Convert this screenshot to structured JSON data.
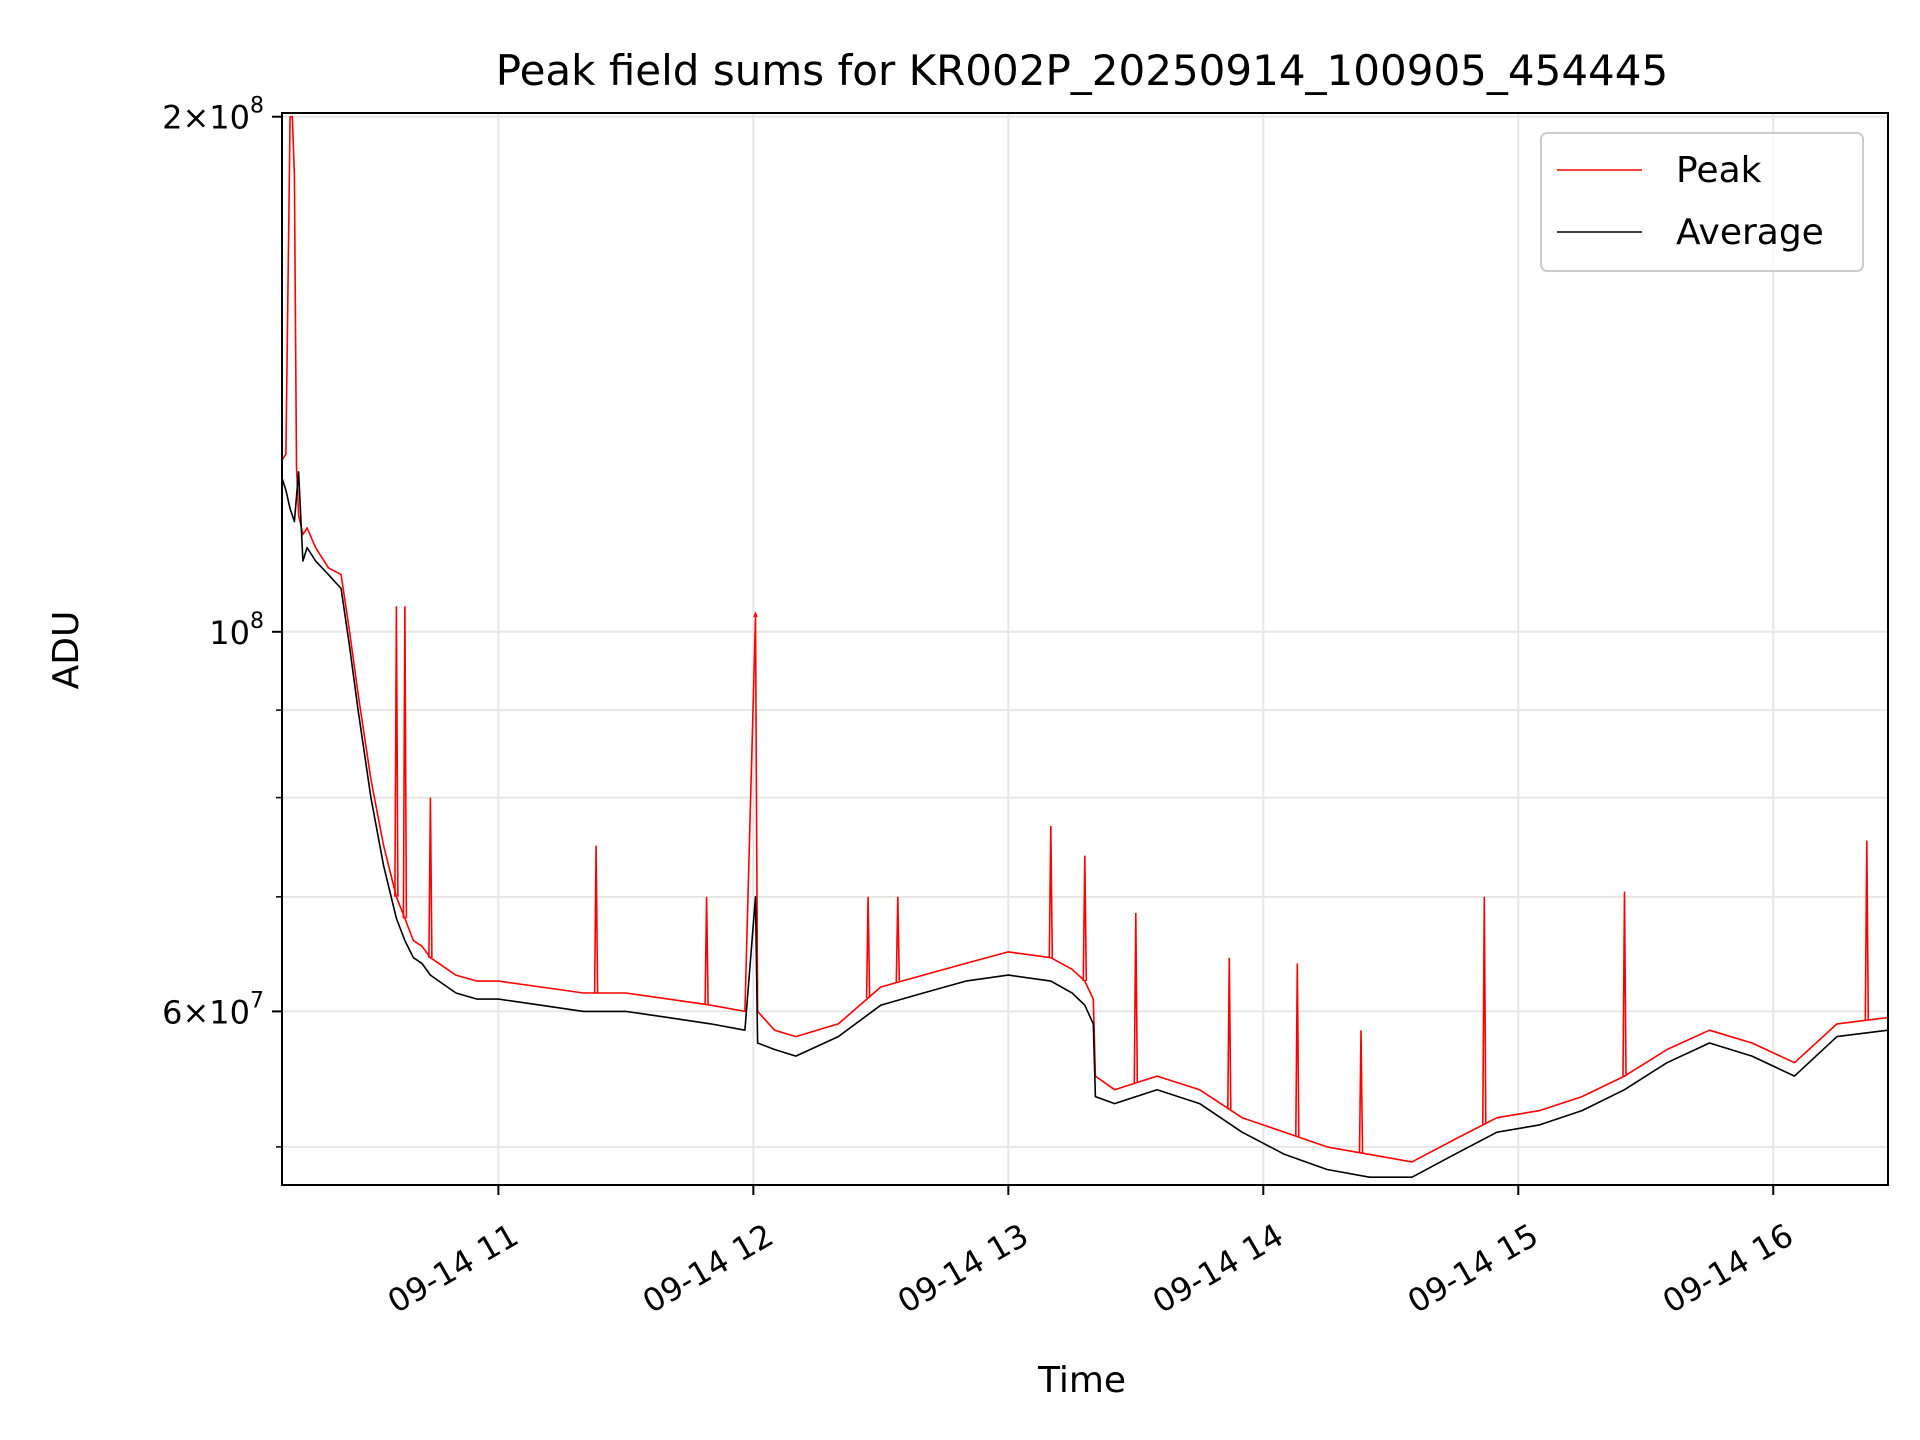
{
  "chart_data": {
    "type": "line",
    "title": "Peak field sums for KR002P_20250914_100905_454445",
    "xlabel": "Time",
    "ylabel": "ADU",
    "y_scale": "log",
    "ylim": [
      47500000,
      201000000
    ],
    "xlim": [
      "2025-09-14 10:09:05",
      "2025-09-14 16:27:00"
    ],
    "x_ticks": [
      {
        "at": "2025-09-14 11:00",
        "label": "09-14 11"
      },
      {
        "at": "2025-09-14 12:00",
        "label": "09-14 12"
      },
      {
        "at": "2025-09-14 13:00",
        "label": "09-14 13"
      },
      {
        "at": "2025-09-14 14:00",
        "label": "09-14 14"
      },
      {
        "at": "2025-09-14 15:00",
        "label": "09-14 15"
      },
      {
        "at": "2025-09-14 16:00",
        "label": "09-14 16"
      }
    ],
    "y_ticks_major": [
      {
        "value": 60000000,
        "base": "6",
        "exp": "7"
      },
      {
        "value": 100000000,
        "base": "",
        "exp": "8"
      },
      {
        "value": 200000000,
        "base": "2",
        "exp": "8"
      }
    ],
    "y_ticks_minor": [
      50000000,
      70000000,
      80000000,
      90000000
    ],
    "grid": true,
    "legend_position": "top-right",
    "series": [
      {
        "name": "Peak",
        "color": "#ff0000",
        "x": [
          "2025-09-14 10:09:05",
          "2025-09-14 10:10:00",
          "2025-09-14 10:11:00",
          "2025-09-14 10:11:30",
          "2025-09-14 10:12:00",
          "2025-09-14 10:12:30",
          "2025-09-14 10:13:00",
          "2025-09-14 10:14:00",
          "2025-09-14 10:15:00",
          "2025-09-14 10:17:00",
          "2025-09-14 10:20:00",
          "2025-09-14 10:23:00",
          "2025-09-14 10:25:00",
          "2025-09-14 10:27:00",
          "2025-09-14 10:30:00",
          "2025-09-14 10:33:00",
          "2025-09-14 10:36:00",
          "2025-09-14 10:38:00",
          "2025-09-14 10:40:00",
          "2025-09-14 10:42:00",
          "2025-09-14 10:44:00",
          "2025-09-14 10:46:00",
          "2025-09-14 10:48:00",
          "2025-09-14 10:50:00",
          "2025-09-14 10:55:00",
          "2025-09-14 11:00:00",
          "2025-09-14 11:10:00",
          "2025-09-14 11:20:00",
          "2025-09-14 11:30:00",
          "2025-09-14 11:40:00",
          "2025-09-14 11:50:00",
          "2025-09-14 11:58:00",
          "2025-09-14 12:00:30",
          "2025-09-14 12:01:00",
          "2025-09-14 12:05:00",
          "2025-09-14 12:10:00",
          "2025-09-14 12:20:00",
          "2025-09-14 12:30:00",
          "2025-09-14 12:40:00",
          "2025-09-14 12:50:00",
          "2025-09-14 13:00:00",
          "2025-09-14 13:10:00",
          "2025-09-14 13:15:00",
          "2025-09-14 13:18:00",
          "2025-09-14 13:20:00",
          "2025-09-14 13:20:30",
          "2025-09-14 13:25:00",
          "2025-09-14 13:35:00",
          "2025-09-14 13:45:00",
          "2025-09-14 13:55:00",
          "2025-09-14 14:05:00",
          "2025-09-14 14:15:00",
          "2025-09-14 14:25:00",
          "2025-09-14 14:35:00",
          "2025-09-14 14:45:00",
          "2025-09-14 14:55:00",
          "2025-09-14 15:05:00",
          "2025-09-14 15:15:00",
          "2025-09-14 15:25:00",
          "2025-09-14 15:35:00",
          "2025-09-14 15:45:00",
          "2025-09-14 15:55:00",
          "2025-09-14 16:05:00",
          "2025-09-14 16:15:00",
          "2025-09-14 16:27:00"
        ],
        "y": [
          126000000,
          127000000,
          200000000,
          200000000,
          185000000,
          125000000,
          117000000,
          114000000,
          115000000,
          112000000,
          109000000,
          108000000,
          100000000,
          92000000,
          82000000,
          75000000,
          70000000,
          68000000,
          66000000,
          65500000,
          64500000,
          64000000,
          63500000,
          63000000,
          62500000,
          62500000,
          62000000,
          61500000,
          61500000,
          61000000,
          60500000,
          60000000,
          102000000,
          60000000,
          58500000,
          58000000,
          59000000,
          62000000,
          63000000,
          64000000,
          65000000,
          64500000,
          63500000,
          62500000,
          61000000,
          55000000,
          54000000,
          55000000,
          54000000,
          52000000,
          51000000,
          50000000,
          49500000,
          49000000,
          50500000,
          52000000,
          52500000,
          53500000,
          55000000,
          57000000,
          58500000,
          57500000,
          56000000,
          59000000,
          59500000
        ],
        "spikes": [
          {
            "x": "2025-09-14 10:36:00",
            "y": 103500000
          },
          {
            "x": "2025-09-14 10:38:00",
            "y": 103500000
          },
          {
            "x": "2025-09-14 10:44:00",
            "y": 80000000
          },
          {
            "x": "2025-09-14 11:23:00",
            "y": 75000000
          },
          {
            "x": "2025-09-14 11:49:00",
            "y": 70000000
          },
          {
            "x": "2025-09-14 12:00:30",
            "y": 102500000
          },
          {
            "x": "2025-09-14 12:27:00",
            "y": 70000000
          },
          {
            "x": "2025-09-14 12:34:00",
            "y": 70000000
          },
          {
            "x": "2025-09-14 13:10:00",
            "y": 77000000
          },
          {
            "x": "2025-09-14 13:18:00",
            "y": 74000000
          },
          {
            "x": "2025-09-14 13:30:00",
            "y": 68500000
          },
          {
            "x": "2025-09-14 13:52:00",
            "y": 64500000
          },
          {
            "x": "2025-09-14 14:08:00",
            "y": 64000000
          },
          {
            "x": "2025-09-14 14:23:00",
            "y": 58500000
          },
          {
            "x": "2025-09-14 14:52:00",
            "y": 70000000
          },
          {
            "x": "2025-09-14 15:25:00",
            "y": 70500000
          },
          {
            "x": "2025-09-14 16:22:00",
            "y": 75500000
          }
        ]
      },
      {
        "name": "Average",
        "color": "#000000",
        "x": [
          "2025-09-14 10:09:05",
          "2025-09-14 10:10:00",
          "2025-09-14 10:11:00",
          "2025-09-14 10:12:00",
          "2025-09-14 10:13:00",
          "2025-09-14 10:14:00",
          "2025-09-14 10:15:00",
          "2025-09-14 10:17:00",
          "2025-09-14 10:20:00",
          "2025-09-14 10:23:00",
          "2025-09-14 10:25:00",
          "2025-09-14 10:27:00",
          "2025-09-14 10:30:00",
          "2025-09-14 10:33:00",
          "2025-09-14 10:36:00",
          "2025-09-14 10:38:00",
          "2025-09-14 10:40:00",
          "2025-09-14 10:42:00",
          "2025-09-14 10:44:00",
          "2025-09-14 10:46:00",
          "2025-09-14 10:48:00",
          "2025-09-14 10:50:00",
          "2025-09-14 10:55:00",
          "2025-09-14 11:00:00",
          "2025-09-14 11:10:00",
          "2025-09-14 11:20:00",
          "2025-09-14 11:30:00",
          "2025-09-14 11:40:00",
          "2025-09-14 11:50:00",
          "2025-09-14 11:58:00",
          "2025-09-14 12:00:30",
          "2025-09-14 12:01:00",
          "2025-09-14 12:05:00",
          "2025-09-14 12:10:00",
          "2025-09-14 12:20:00",
          "2025-09-14 12:30:00",
          "2025-09-14 12:40:00",
          "2025-09-14 12:50:00",
          "2025-09-14 13:00:00",
          "2025-09-14 13:10:00",
          "2025-09-14 13:15:00",
          "2025-09-14 13:18:00",
          "2025-09-14 13:20:00",
          "2025-09-14 13:20:30",
          "2025-09-14 13:25:00",
          "2025-09-14 13:35:00",
          "2025-09-14 13:45:00",
          "2025-09-14 13:55:00",
          "2025-09-14 14:05:00",
          "2025-09-14 14:15:00",
          "2025-09-14 14:25:00",
          "2025-09-14 14:35:00",
          "2025-09-14 14:45:00",
          "2025-09-14 14:55:00",
          "2025-09-14 15:05:00",
          "2025-09-14 15:15:00",
          "2025-09-14 15:25:00",
          "2025-09-14 15:35:00",
          "2025-09-14 15:45:00",
          "2025-09-14 15:55:00",
          "2025-09-14 16:05:00",
          "2025-09-14 16:15:00",
          "2025-09-14 16:27:00"
        ],
        "y": [
          123000000,
          121000000,
          118000000,
          116000000,
          124000000,
          110000000,
          112000000,
          110000000,
          108000000,
          106000000,
          98000000,
          90000000,
          80000000,
          73000000,
          68000000,
          66000000,
          64500000,
          64000000,
          63000000,
          62500000,
          62000000,
          61500000,
          61000000,
          61000000,
          60500000,
          60000000,
          60000000,
          59500000,
          59000000,
          58500000,
          70000000,
          57500000,
          57000000,
          56500000,
          58000000,
          60500000,
          61500000,
          62500000,
          63000000,
          62500000,
          61500000,
          60500000,
          59000000,
          53500000,
          53000000,
          54000000,
          53000000,
          51000000,
          49500000,
          48500000,
          48000000,
          48000000,
          49500000,
          51000000,
          51500000,
          52500000,
          54000000,
          56000000,
          57500000,
          56500000,
          55000000,
          58000000,
          58500000
        ]
      }
    ]
  }
}
